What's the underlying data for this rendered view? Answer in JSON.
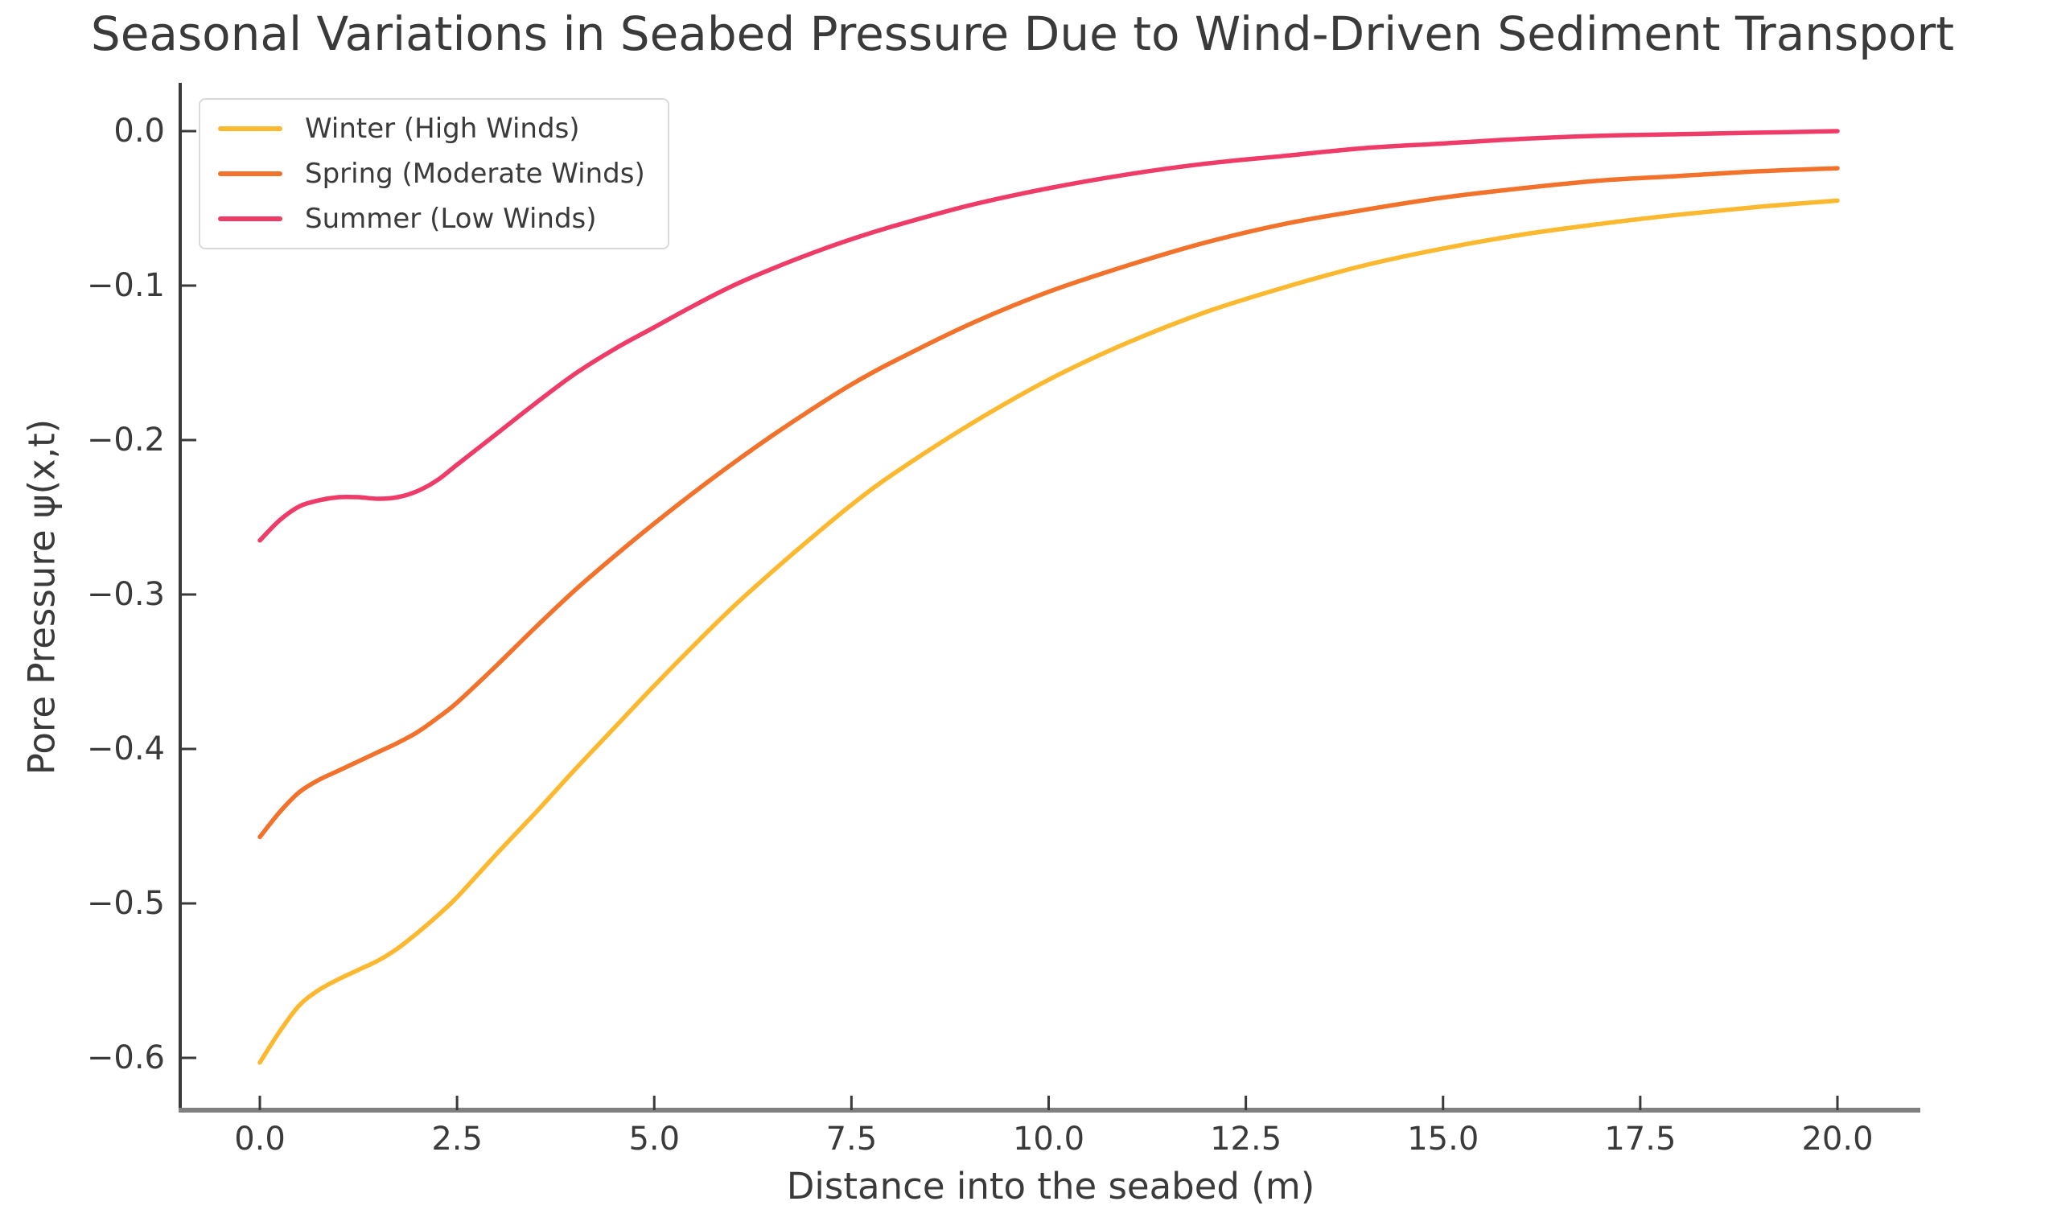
{
  "figure": {
    "title": "Seasonal Variations in Seabed Pressure Due to Wind-Driven Sediment Transport"
  },
  "axes": {
    "xlabel": "Distance into the seabed (m)",
    "ylabel": "Pore Pressure ψ(x,t)",
    "xtick_labels": [
      "0.0",
      "2.5",
      "5.0",
      "7.5",
      "10.0",
      "12.5",
      "15.0",
      "17.5",
      "20.0"
    ],
    "ytick_labels": [
      "0.0",
      "−0.1",
      "−0.2",
      "−0.3",
      "−0.4",
      "−0.5",
      "−0.6"
    ]
  },
  "legend": {
    "items": [
      {
        "label": "Winter (High Winds)",
        "color": "#FCB82F"
      },
      {
        "label": "Spring (Moderate Winds)",
        "color": "#F2712B"
      },
      {
        "label": "Summer (Low Winds)",
        "color": "#EE3B67"
      }
    ]
  },
  "chart_data": {
    "type": "line",
    "title": "Seasonal Variations in Seabed Pressure Due to Wind-Driven Sediment Transport",
    "xlabel": "Distance into the seabed (m)",
    "ylabel": "Pore Pressure ψ(x,t)",
    "xlim": [
      -1.0,
      21.1
    ],
    "ylim": [
      -0.634,
      0.03
    ],
    "xticks": [
      0.0,
      2.5,
      5.0,
      7.5,
      10.0,
      12.5,
      15.0,
      17.5,
      20.0
    ],
    "yticks": [
      0.0,
      -0.1,
      -0.2,
      -0.3,
      -0.4,
      -0.5,
      -0.6
    ],
    "grid": false,
    "legend_position": "upper left",
    "x": [
      0,
      0.25,
      0.5,
      0.75,
      1,
      1.25,
      1.5,
      1.75,
      2,
      2.25,
      2.5,
      3,
      3.5,
      4,
      4.5,
      5,
      5.5,
      6,
      6.5,
      7,
      7.5,
      8,
      9,
      10,
      11,
      12,
      13,
      14,
      15,
      16,
      17,
      18,
      19,
      20
    ],
    "series": [
      {
        "name": "Winter (High Winds)",
        "color": "#FCB82F",
        "values": [
          -0.603,
          -0.583,
          -0.566,
          -0.556,
          -0.549,
          -0.543,
          -0.537,
          -0.529,
          -0.519,
          -0.508,
          -0.496,
          -0.468,
          -0.441,
          -0.413,
          -0.386,
          -0.359,
          -0.333,
          -0.308,
          -0.285,
          -0.263,
          -0.242,
          -0.223,
          -0.19,
          -0.161,
          -0.137,
          -0.117,
          -0.101,
          -0.087,
          -0.076,
          -0.067,
          -0.06,
          -0.054,
          -0.049,
          -0.045
        ]
      },
      {
        "name": "Spring (Moderate Winds)",
        "color": "#F2712B",
        "values": [
          -0.457,
          -0.441,
          -0.428,
          -0.42,
          -0.414,
          -0.408,
          -0.402,
          -0.396,
          -0.389,
          -0.38,
          -0.37,
          -0.346,
          -0.321,
          -0.297,
          -0.275,
          -0.254,
          -0.234,
          -0.215,
          -0.197,
          -0.18,
          -0.164,
          -0.15,
          -0.125,
          -0.104,
          -0.087,
          -0.072,
          -0.06,
          -0.051,
          -0.043,
          -0.037,
          -0.032,
          -0.029,
          -0.026,
          -0.024
        ]
      },
      {
        "name": "Summer (Low Winds)",
        "color": "#EE3B67",
        "values": [
          -0.265,
          -0.252,
          -0.243,
          -0.239,
          -0.237,
          -0.237,
          -0.238,
          -0.237,
          -0.233,
          -0.226,
          -0.216,
          -0.196,
          -0.176,
          -0.157,
          -0.141,
          -0.127,
          -0.113,
          -0.1,
          -0.089,
          -0.079,
          -0.07,
          -0.062,
          -0.048,
          -0.037,
          -0.028,
          -0.021,
          -0.016,
          -0.011,
          -0.008,
          -0.005,
          -0.003,
          -0.002,
          -0.001,
          0.0
        ]
      }
    ]
  }
}
